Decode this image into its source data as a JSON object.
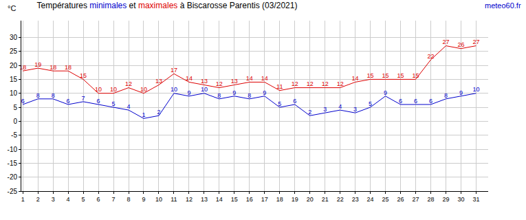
{
  "chart_data": {
    "type": "line",
    "title": "Températures minimales et maximales à Biscarosse Parentis (03/2021)",
    "y_label": "°C",
    "annotations": [
      "meteo60.fr"
    ],
    "x": [
      1,
      2,
      3,
      4,
      5,
      6,
      7,
      8,
      9,
      10,
      11,
      12,
      13,
      14,
      15,
      16,
      17,
      18,
      19,
      20,
      21,
      22,
      23,
      24,
      25,
      26,
      27,
      28,
      29,
      30,
      31
    ],
    "series": [
      {
        "name": "minimales",
        "color": "#0000cc",
        "values": [
          6,
          8,
          8,
          6,
          7,
          6,
          5,
          4,
          1,
          2,
          10,
          9,
          10,
          8,
          9,
          8,
          9,
          5,
          6,
          2,
          3,
          4,
          3,
          5,
          9,
          6,
          6,
          6,
          8,
          9,
          10
        ]
      },
      {
        "name": "maximales",
        "color": "#dd0000",
        "values": [
          18,
          19,
          18,
          18,
          15,
          10,
          10,
          12,
          10,
          13,
          17,
          14,
          13,
          12,
          13,
          14,
          14,
          11,
          12,
          12,
          12,
          12,
          14,
          15,
          15,
          15,
          15,
          22,
          27,
          26,
          27
        ]
      }
    ],
    "xlim": [
      0.9,
      31.8
    ],
    "xticks": [
      1,
      2,
      3,
      4,
      5,
      6,
      7,
      8,
      9,
      10,
      11,
      12,
      13,
      14,
      15,
      16,
      17,
      18,
      19,
      20,
      21,
      22,
      23,
      24,
      25,
      26,
      27,
      28,
      29,
      30,
      31
    ],
    "ylim": [
      -25,
      36
    ],
    "yticks": [
      -25,
      -20,
      -15,
      -10,
      -5,
      0,
      5,
      10,
      15,
      20,
      25,
      30
    ],
    "grid": true,
    "data_labels": true
  }
}
